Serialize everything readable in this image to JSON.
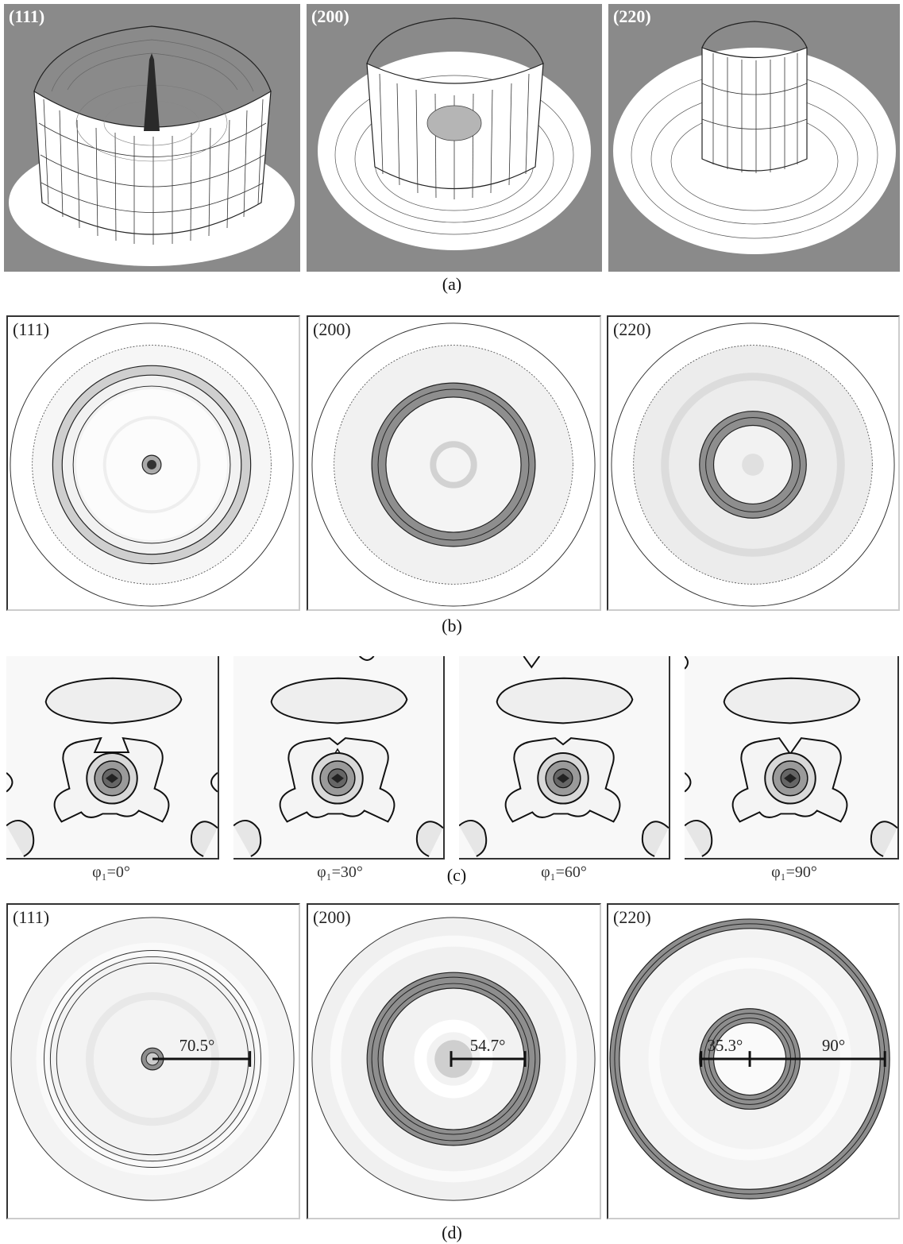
{
  "row_a": {
    "caption": "(a)",
    "panels": [
      {
        "tag": "(111)"
      },
      {
        "tag": "(200)"
      },
      {
        "tag": "(220)"
      }
    ]
  },
  "row_b": {
    "caption": "(b)",
    "panels": [
      {
        "tag": "(111)"
      },
      {
        "tag": "(200)"
      },
      {
        "tag": "(220)"
      }
    ]
  },
  "row_c": {
    "caption": "(c)",
    "sections": [
      {
        "label": "φ₁=0°"
      },
      {
        "label": "φ₁=30°"
      },
      {
        "label": "φ₁=60°"
      },
      {
        "label": "φ₁=90°"
      }
    ]
  },
  "row_d": {
    "caption": "(d)",
    "panels": [
      {
        "tag": "(111)",
        "angle_labels": [
          "70.5°"
        ]
      },
      {
        "tag": "(200)",
        "angle_labels": [
          "54.7°"
        ]
      },
      {
        "tag": "(220)",
        "angle_labels": [
          "35.3°",
          "90°"
        ]
      }
    ]
  },
  "colors": {
    "panel_bg_a": "#8a8a8a",
    "ring_dark": "#8e8e8e",
    "ring_light": "#cfcfcf",
    "contour": "#1a1a1a"
  }
}
